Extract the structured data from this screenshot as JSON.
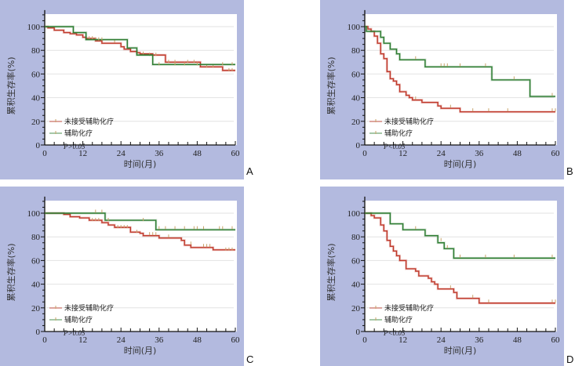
{
  "figure": {
    "panels": [
      "A",
      "B",
      "C",
      "D"
    ]
  },
  "colors": {
    "background": "#b3badf",
    "plot_bg": "#ffffff",
    "grid": "#e2e2e2",
    "no_chemo": "#c0392b",
    "chemo": "#2e7d32",
    "censor_tick": "#c8a36a"
  },
  "chart_data": [
    {
      "id": "A",
      "type": "line",
      "subtype": "kaplan-meier",
      "label": "A",
      "xlabel": "时间(月)",
      "ylabel": "累积生存率(%)",
      "xlim": [
        0,
        60
      ],
      "ylim": [
        0,
        110
      ],
      "xticks": [
        0,
        12,
        24,
        36,
        48,
        60
      ],
      "yticks": [
        0,
        20,
        40,
        60,
        80,
        100
      ],
      "grid": true,
      "legend_position": "bottom-left",
      "p_value": "P>0.05",
      "series": [
        {
          "name": "未接受辅助化疗",
          "color_key": "no_chemo",
          "steps": [
            [
              0,
              100
            ],
            [
              1,
              99
            ],
            [
              3,
              97
            ],
            [
              6,
              95
            ],
            [
              8,
              94
            ],
            [
              10,
              93
            ],
            [
              12,
              91
            ],
            [
              13,
              90
            ],
            [
              16,
              88
            ],
            [
              18,
              86
            ],
            [
              24,
              83
            ],
            [
              25,
              81
            ],
            [
              27,
              79
            ],
            [
              29,
              78
            ],
            [
              30,
              77
            ],
            [
              34,
              76
            ],
            [
              38,
              70
            ],
            [
              49,
              66
            ],
            [
              56,
              63
            ],
            [
              60,
              63
            ]
          ],
          "censors": [
            [
              14,
              90
            ],
            [
              16,
              89
            ],
            [
              22,
              87
            ],
            [
              31,
              77
            ],
            [
              33,
              76
            ],
            [
              35,
              76
            ],
            [
              39,
              70
            ],
            [
              41,
              70
            ],
            [
              45,
              70
            ],
            [
              47,
              70
            ],
            [
              51,
              66
            ],
            [
              53,
              66
            ],
            [
              58,
              63
            ],
            [
              59,
              63
            ]
          ]
        },
        {
          "name": "辅助化疗",
          "color_key": "chemo",
          "steps": [
            [
              0,
              100
            ],
            [
              9,
              100
            ],
            [
              9,
              95
            ],
            [
              13,
              95
            ],
            [
              13,
              89
            ],
            [
              26,
              89
            ],
            [
              26,
              82
            ],
            [
              29,
              82
            ],
            [
              29,
              76
            ],
            [
              34,
              76
            ],
            [
              34,
              68
            ],
            [
              60,
              68
            ]
          ],
          "censors": [
            [
              15,
              90
            ],
            [
              17,
              89
            ],
            [
              18,
              89
            ],
            [
              36,
              68
            ],
            [
              41,
              68
            ],
            [
              44,
              68
            ],
            [
              48,
              68
            ],
            [
              56,
              68
            ],
            [
              59,
              68
            ]
          ]
        }
      ]
    },
    {
      "id": "B",
      "type": "line",
      "subtype": "kaplan-meier",
      "label": "B",
      "xlabel": "时间(月)",
      "ylabel": "累积生存率(%)",
      "xlim": [
        0,
        60
      ],
      "ylim": [
        0,
        110
      ],
      "xticks": [
        0,
        12,
        24,
        36,
        48,
        60
      ],
      "yticks": [
        0,
        20,
        40,
        60,
        80,
        100
      ],
      "grid": true,
      "legend_position": "bottom-left",
      "p_value": "P<0.05",
      "series": [
        {
          "name": "未接受辅助化疗",
          "color_key": "no_chemo",
          "steps": [
            [
              0,
              100
            ],
            [
              1,
              98
            ],
            [
              2,
              96
            ],
            [
              3,
              92
            ],
            [
              4,
              86
            ],
            [
              5,
              77
            ],
            [
              6,
              73
            ],
            [
              7,
              62
            ],
            [
              8,
              56
            ],
            [
              9,
              54
            ],
            [
              10,
              51
            ],
            [
              11,
              45
            ],
            [
              13,
              42
            ],
            [
              14,
              40
            ],
            [
              15,
              38
            ],
            [
              18,
              36
            ],
            [
              23,
              33
            ],
            [
              24,
              31
            ],
            [
              30,
              28
            ],
            [
              60,
              28
            ]
          ],
          "censors": [
            [
              16,
              39
            ],
            [
              27,
              32
            ],
            [
              34,
              29
            ],
            [
              39,
              29
            ],
            [
              45,
              29
            ],
            [
              59,
              29
            ],
            [
              60,
              29
            ]
          ]
        },
        {
          "name": "辅助化疗",
          "color_key": "chemo",
          "steps": [
            [
              0,
              100
            ],
            [
              0.5,
              96
            ],
            [
              5,
              96
            ],
            [
              5,
              91
            ],
            [
              6,
              86
            ],
            [
              8,
              81
            ],
            [
              10,
              77
            ],
            [
              11,
              72
            ],
            [
              19,
              72
            ],
            [
              19,
              66
            ],
            [
              40,
              66
            ],
            [
              40,
              55
            ],
            [
              52,
              55
            ],
            [
              52,
              41
            ],
            [
              60,
              41
            ]
          ],
          "censors": [
            [
              16,
              73
            ],
            [
              24,
              67
            ],
            [
              25,
              67
            ],
            [
              26,
              67
            ],
            [
              30,
              67
            ],
            [
              38,
              67
            ],
            [
              47,
              56
            ],
            [
              59,
              42
            ]
          ]
        }
      ]
    },
    {
      "id": "C",
      "type": "line",
      "subtype": "kaplan-meier",
      "label": "C",
      "xlabel": "时间(月)",
      "ylabel": "累积生存率(%)",
      "xlim": [
        0,
        60
      ],
      "ylim": [
        0,
        110
      ],
      "xticks": [
        0,
        12,
        24,
        36,
        48,
        60
      ],
      "yticks": [
        0,
        20,
        40,
        60,
        80,
        100
      ],
      "grid": true,
      "legend_position": "bottom-left",
      "p_value": "P>0.05",
      "series": [
        {
          "name": "未接受辅助化疗",
          "color_key": "no_chemo",
          "steps": [
            [
              0,
              100
            ],
            [
              6,
              100
            ],
            [
              6,
              99
            ],
            [
              8,
              97
            ],
            [
              11,
              96
            ],
            [
              14,
              94
            ],
            [
              18,
              92
            ],
            [
              20,
              90
            ],
            [
              22,
              88
            ],
            [
              27,
              84
            ],
            [
              30,
              83
            ],
            [
              31,
              81
            ],
            [
              36,
              79
            ],
            [
              43,
              77
            ],
            [
              44,
              73
            ],
            [
              46,
              71
            ],
            [
              53,
              69
            ],
            [
              60,
              69
            ]
          ],
          "censors": [
            [
              15,
              94
            ],
            [
              16,
              94
            ],
            [
              17,
              94
            ],
            [
              23,
              88
            ],
            [
              24,
              88
            ],
            [
              25,
              88
            ],
            [
              26,
              88
            ],
            [
              29,
              84
            ],
            [
              33,
              82
            ],
            [
              34,
              82
            ],
            [
              35,
              82
            ],
            [
              39,
              80
            ],
            [
              46,
              74
            ],
            [
              50,
              72
            ],
            [
              51,
              72
            ],
            [
              52,
              72
            ],
            [
              57,
              69
            ],
            [
              58,
              69
            ],
            [
              59,
              69
            ]
          ]
        },
        {
          "name": "辅助化疗",
          "color_key": "chemo",
          "steps": [
            [
              0,
              100
            ],
            [
              19,
              100
            ],
            [
              19,
              94
            ],
            [
              35,
              94
            ],
            [
              35,
              86
            ],
            [
              60,
              86
            ]
          ],
          "censors": [
            [
              16,
              101
            ],
            [
              18,
              101
            ],
            [
              20,
              94
            ],
            [
              31,
              94
            ],
            [
              36,
              87
            ],
            [
              38,
              87
            ],
            [
              41,
              87
            ],
            [
              44,
              87
            ],
            [
              47,
              87
            ],
            [
              48,
              87
            ],
            [
              50,
              87
            ],
            [
              55,
              87
            ],
            [
              56,
              87
            ],
            [
              59,
              87
            ]
          ]
        }
      ]
    },
    {
      "id": "D",
      "type": "line",
      "subtype": "kaplan-meier",
      "label": "D",
      "xlabel": "时间(月)",
      "ylabel": "累积生存率(%)",
      "xlim": [
        0,
        60
      ],
      "ylim": [
        0,
        110
      ],
      "xticks": [
        0,
        12,
        24,
        36,
        48,
        60
      ],
      "yticks": [
        0,
        20,
        40,
        60,
        80,
        100
      ],
      "grid": true,
      "legend_position": "bottom-left",
      "p_value": "P<0.05",
      "series": [
        {
          "name": "未接受辅助化疗",
          "color_key": "no_chemo",
          "steps": [
            [
              0,
              100
            ],
            [
              2,
              98
            ],
            [
              3,
              96
            ],
            [
              5,
              90
            ],
            [
              6,
              85
            ],
            [
              7,
              77
            ],
            [
              8,
              72
            ],
            [
              9,
              68
            ],
            [
              10,
              64
            ],
            [
              11,
              60
            ],
            [
              13,
              53
            ],
            [
              16,
              51
            ],
            [
              17,
              47
            ],
            [
              20,
              45
            ],
            [
              21,
              42
            ],
            [
              22,
              40
            ],
            [
              23,
              36
            ],
            [
              28,
              33
            ],
            [
              29,
              28
            ],
            [
              36,
              24
            ],
            [
              60,
              24
            ]
          ],
          "censors": [
            [
              27,
              37
            ],
            [
              34,
              29
            ],
            [
              39,
              25
            ],
            [
              59,
              25
            ],
            [
              60,
              25
            ]
          ]
        },
        {
          "name": "辅助化疗",
          "color_key": "chemo",
          "steps": [
            [
              0,
              100
            ],
            [
              8,
              100
            ],
            [
              8,
              91
            ],
            [
              12,
              91
            ],
            [
              12,
              86
            ],
            [
              19,
              86
            ],
            [
              19,
              81
            ],
            [
              23,
              81
            ],
            [
              23,
              75
            ],
            [
              25,
              75
            ],
            [
              25,
              70
            ],
            [
              28,
              70
            ],
            [
              28,
              62
            ],
            [
              60,
              62
            ]
          ],
          "censors": [
            [
              16,
              87
            ],
            [
              24,
              77
            ],
            [
              26,
              71
            ],
            [
              30,
              63
            ],
            [
              38,
              63
            ],
            [
              47,
              63
            ],
            [
              59,
              63
            ]
          ]
        }
      ]
    }
  ]
}
